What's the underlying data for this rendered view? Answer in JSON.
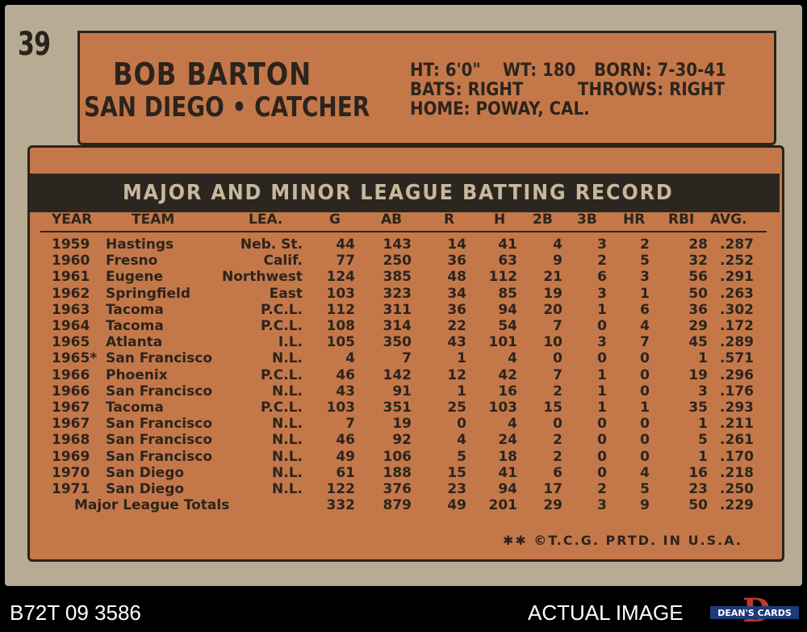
{
  "card": {
    "number": "39",
    "name": "BOB BARTON",
    "team_position": "SAN DIEGO • CATCHER",
    "height": "HT: 6'0\"",
    "weight": "WT: 180",
    "born": "BORN: 7-30-41",
    "bats": "BATS: RIGHT",
    "throws": "THROWS: RIGHT",
    "home": "HOME: POWAY, CAL.",
    "record_title": "MAJOR AND MINOR LEAGUE BATTING RECORD",
    "copyright": "✱✱ ©T.C.G. PRTD. IN U.S.A."
  },
  "table": {
    "headers": [
      "YEAR",
      "TEAM",
      "LEA.",
      "G",
      "AB",
      "R",
      "H",
      "2B",
      "3B",
      "HR",
      "RBI",
      "AVG."
    ],
    "rows": [
      [
        "1959",
        "Hastings",
        "Neb. St.",
        "44",
        "143",
        "14",
        "41",
        "4",
        "3",
        "2",
        "28",
        ".287"
      ],
      [
        "1960",
        "Fresno",
        "Calif.",
        "77",
        "250",
        "36",
        "63",
        "9",
        "2",
        "5",
        "32",
        ".252"
      ],
      [
        "1961",
        "Eugene",
        "Northwest",
        "124",
        "385",
        "48",
        "112",
        "21",
        "6",
        "3",
        "56",
        ".291"
      ],
      [
        "1962",
        "Springfield",
        "East",
        "103",
        "323",
        "34",
        "85",
        "19",
        "3",
        "1",
        "50",
        ".263"
      ],
      [
        "1963",
        "Tacoma",
        "P.C.L.",
        "112",
        "311",
        "36",
        "94",
        "20",
        "1",
        "6",
        "36",
        ".302"
      ],
      [
        "1964",
        "Tacoma",
        "P.C.L.",
        "108",
        "314",
        "22",
        "54",
        "7",
        "0",
        "4",
        "29",
        ".172"
      ],
      [
        "1965",
        "Atlanta",
        "I.L.",
        "105",
        "350",
        "43",
        "101",
        "10",
        "3",
        "7",
        "45",
        ".289"
      ],
      [
        "1965*",
        "San Francisco",
        "N.L.",
        "4",
        "7",
        "1",
        "4",
        "0",
        "0",
        "0",
        "1",
        ".571"
      ],
      [
        "1966",
        "Phoenix",
        "P.C.L.",
        "46",
        "142",
        "12",
        "42",
        "7",
        "1",
        "0",
        "19",
        ".296"
      ],
      [
        "1966",
        "San Francisco",
        "N.L.",
        "43",
        "91",
        "1",
        "16",
        "2",
        "1",
        "0",
        "3",
        ".176"
      ],
      [
        "1967",
        "Tacoma",
        "P.C.L.",
        "103",
        "351",
        "25",
        "103",
        "15",
        "1",
        "1",
        "35",
        ".293"
      ],
      [
        "1967",
        "San Francisco",
        "N.L.",
        "7",
        "19",
        "0",
        "4",
        "0",
        "0",
        "0",
        "1",
        ".211"
      ],
      [
        "1968",
        "San Francisco",
        "N.L.",
        "46",
        "92",
        "4",
        "24",
        "2",
        "0",
        "0",
        "5",
        ".261"
      ],
      [
        "1969",
        "San Francisco",
        "N.L.",
        "49",
        "106",
        "5",
        "18",
        "2",
        "0",
        "0",
        "1",
        ".170"
      ],
      [
        "1970",
        "San Diego",
        "N.L.",
        "61",
        "188",
        "15",
        "41",
        "6",
        "0",
        "4",
        "16",
        ".218"
      ],
      [
        "1971",
        "San Diego",
        "N.L.",
        "122",
        "376",
        "23",
        "94",
        "17",
        "2",
        "5",
        "23",
        ".250"
      ]
    ],
    "totals": [
      "Major League Totals",
      "332",
      "879",
      "49",
      "201",
      "29",
      "3",
      "9",
      "50",
      ".229"
    ]
  },
  "footer": {
    "cert_id": "B72T 09 3586",
    "actual_image": "ACTUAL IMAGE",
    "logo_text": "DEAN'S CARDS",
    "logo_letter": "D"
  },
  "colors": {
    "card_stock": "#b7ac93",
    "orange_panel": "#c4784a",
    "ink": "#2c241c"
  }
}
